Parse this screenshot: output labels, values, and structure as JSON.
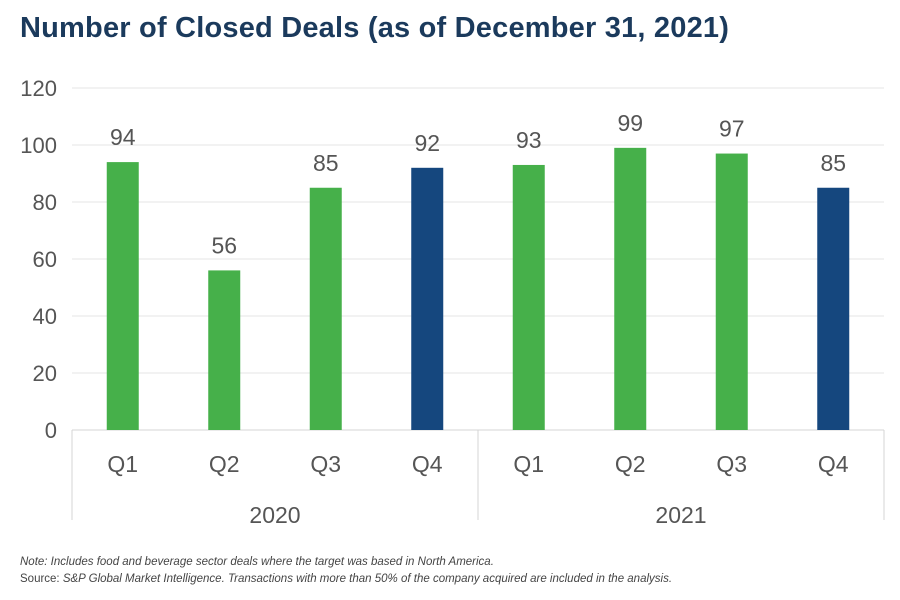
{
  "title": "Number of Closed Deals (as of December 31, 2021)",
  "chart_data": {
    "type": "bar",
    "title": "Number of Closed Deals (as of December 31, 2021)",
    "xlabel": "",
    "ylabel": "",
    "ylim": [
      0,
      120
    ],
    "yticks": [
      "0",
      "20",
      "40",
      "60",
      "80",
      "100",
      "120"
    ],
    "groups": [
      {
        "label": "2020",
        "categories": [
          "Q1",
          "Q2",
          "Q3",
          "Q4"
        ],
        "values": [
          94,
          56,
          85,
          92
        ]
      },
      {
        "label": "2021",
        "categories": [
          "Q1",
          "Q2",
          "Q3",
          "Q4"
        ],
        "values": [
          93,
          99,
          97,
          85
        ]
      }
    ],
    "bar_colors": [
      [
        "#46b04a",
        "#46b04a",
        "#46b04a",
        "#15477e"
      ],
      [
        "#46b04a",
        "#46b04a",
        "#46b04a",
        "#15477e"
      ]
    ],
    "grid": true
  },
  "notes": {
    "note": "Note: Includes food and beverage sector deals where the target was based in North America.",
    "source_label": "Source:",
    "source_text": "S&P Global Market Intelligence. Transactions with more than 50% of the company acquired are included in the analysis."
  }
}
